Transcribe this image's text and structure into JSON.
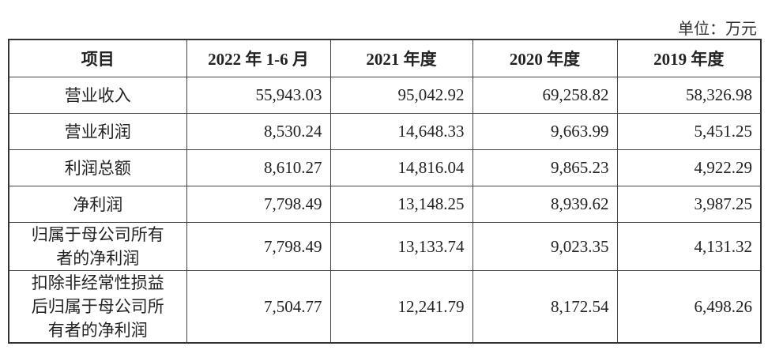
{
  "unit": "单位：万元",
  "table": {
    "header": [
      "项目",
      "2022 年 1-6 月",
      "2021 年度",
      "2020 年度",
      "2019 年度"
    ],
    "rows": [
      [
        "营业收入",
        "55,943.03",
        "95,042.92",
        "69,258.82",
        "58,326.98"
      ],
      [
        "营业利润",
        "8,530.24",
        "14,648.33",
        "9,663.99",
        "5,451.25"
      ],
      [
        "利润总额",
        "8,610.27",
        "14,816.04",
        "9,865.23",
        "4,922.29"
      ],
      [
        "净利润",
        "7,798.49",
        "13,148.25",
        "8,939.62",
        "3,987.25"
      ],
      [
        "归属于母公司所有者的净利润",
        "7,798.49",
        "13,133.74",
        "9,023.35",
        "4,131.32"
      ],
      [
        "扣除非经常性损益后归属于母公司所有者的净利润",
        "7,504.77",
        "12,241.79",
        "8,172.54",
        "6,498.26"
      ]
    ]
  }
}
